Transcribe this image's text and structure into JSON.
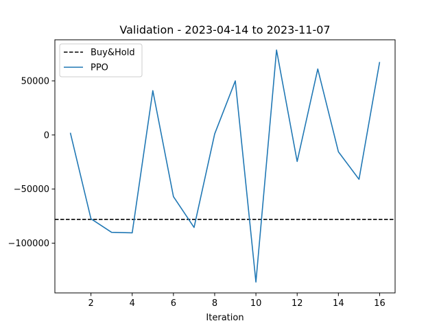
{
  "chart_data": {
    "type": "line",
    "title": "Validation - 2023-04-14 to 2023-11-07",
    "xlabel": "Iteration",
    "ylabel": "",
    "xlim": [
      0.25,
      16.75
    ],
    "ylim": [
      -146000,
      88000
    ],
    "xticks": [
      2,
      4,
      6,
      8,
      10,
      12,
      14,
      16
    ],
    "yticks": [
      50000,
      0,
      -50000,
      -100000
    ],
    "ytick_labels": [
      "50000",
      "0",
      "−50000",
      "−100000"
    ],
    "grid": false,
    "legend_position": "top-left",
    "legend": [
      {
        "label": "Buy&Hold",
        "style": "dashed",
        "color": "#000000"
      },
      {
        "label": "PPO",
        "style": "solid",
        "color": "#1f77b4"
      }
    ],
    "hlines": [
      {
        "name": "Buy&Hold",
        "y": -78000,
        "color": "#000000",
        "style": "dashed"
      }
    ],
    "series": [
      {
        "name": "PPO",
        "color": "#1f77b4",
        "x": [
          1,
          2,
          3,
          4,
          5,
          6,
          7,
          8,
          9,
          10,
          11,
          12,
          13,
          14,
          15,
          16
        ],
        "y": [
          2000,
          -77500,
          -90000,
          -90500,
          41000,
          -57000,
          -85500,
          1000,
          50000,
          -136000,
          78500,
          -24500,
          61000,
          -15500,
          -41000,
          67500
        ]
      }
    ]
  }
}
